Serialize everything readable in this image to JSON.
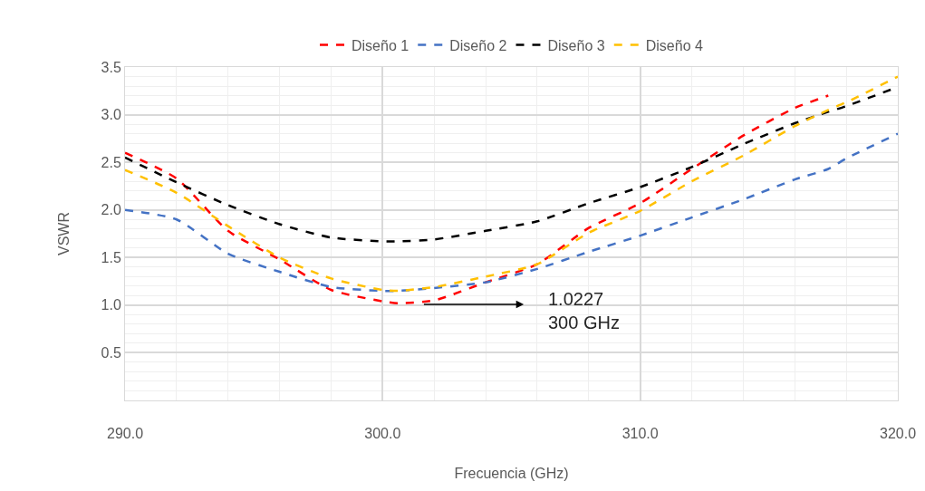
{
  "chart_data": {
    "type": "line",
    "xlabel": "Frecuencia (GHz)",
    "ylabel": "VSWR",
    "x": [
      290,
      292,
      294,
      296,
      298,
      300,
      300.6,
      302,
      304,
      306,
      308,
      310,
      312,
      314,
      316,
      317.3,
      318,
      320
    ],
    "series": [
      {
        "name": "Diseño 1",
        "color": "#ff0000",
        "values": [
          2.6,
          2.33,
          1.78,
          1.48,
          1.16,
          1.04,
          1.02,
          1.05,
          1.24,
          1.43,
          1.81,
          2.07,
          2.43,
          2.78,
          3.07,
          3.2,
          null,
          null
        ]
      },
      {
        "name": "Diseño 2",
        "color": "#4472c4",
        "values": [
          2.0,
          1.9,
          1.54,
          1.35,
          1.19,
          1.15,
          1.15,
          1.18,
          1.24,
          1.38,
          1.56,
          1.73,
          1.92,
          2.11,
          2.32,
          2.43,
          2.54,
          2.8
        ]
      },
      {
        "name": "Diseño 3",
        "color": "#000000",
        "values": [
          2.55,
          2.29,
          2.05,
          1.85,
          1.71,
          1.67,
          1.67,
          1.69,
          1.78,
          1.88,
          2.07,
          2.24,
          2.45,
          2.69,
          2.91,
          3.03,
          3.09,
          3.29
        ]
      },
      {
        "name": "Diseño 4",
        "color": "#ffc000",
        "values": [
          2.42,
          2.18,
          1.83,
          1.5,
          1.28,
          1.16,
          1.15,
          1.19,
          1.3,
          1.43,
          1.76,
          1.99,
          2.3,
          2.57,
          2.88,
          3.05,
          3.13,
          3.4
        ]
      }
    ],
    "xlim": [
      290,
      320
    ],
    "xticks": [
      {
        "value": 290,
        "label": "290.0"
      },
      {
        "value": 300,
        "label": "300.0"
      },
      {
        "value": 310,
        "label": "310.0"
      },
      {
        "value": 320,
        "label": "320.0"
      }
    ],
    "ylim": [
      0,
      3.5
    ],
    "yticks": [
      {
        "value": 0.5,
        "label": "0.5"
      },
      {
        "value": 1,
        "label": "1.0"
      },
      {
        "value": 1.5,
        "label": "1.5"
      },
      {
        "value": 2,
        "label": "2.0"
      },
      {
        "value": 2.5,
        "label": "2.5"
      },
      {
        "value": 3,
        "label": "3.0"
      },
      {
        "value": 3.5,
        "label": "3.5"
      }
    ],
    "annotations": [
      "1.0227\n300 GHz"
    ],
    "grid": true,
    "legend": "top",
    "marker": "none",
    "line_style": "dashed"
  }
}
